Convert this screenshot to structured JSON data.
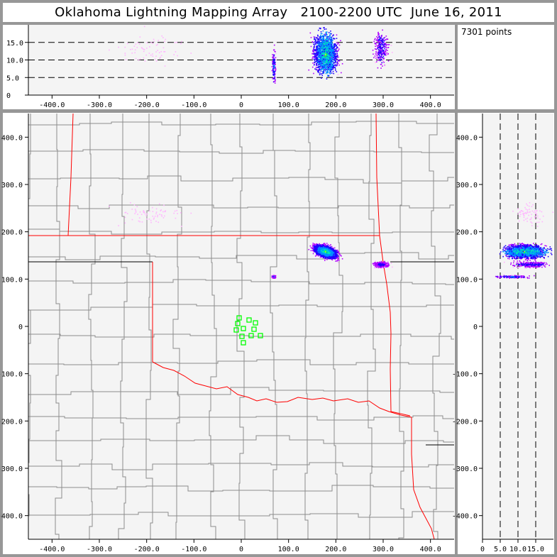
{
  "title": "Oklahoma Lightning Mapping Array   2100-2200 UTC  June 16, 2011",
  "point_count": "7301 points",
  "colors": {
    "frame": "#979797",
    "plot_bg": "#f4f4f4",
    "state_border": "#ff0000",
    "county_border": "#8c8c8c",
    "station": "#00ff00",
    "density_scale": [
      "#ffb4ff",
      "#b000ff",
      "#2000ff",
      "#0090ff",
      "#00e0c0",
      "#00ff40",
      "#ffff00"
    ]
  },
  "chart_data": [
    {
      "panel": "top",
      "type": "scatter",
      "xlabel": "",
      "ylabel": "",
      "xlim": [
        -450,
        450
      ],
      "ylim": [
        0,
        20
      ],
      "x_ticks": [
        "-400.0",
        "-300.0",
        "-200.0",
        "-100.0",
        "0",
        "100.0",
        "200.0",
        "300.0",
        "400.0"
      ],
      "x_tick_values": [
        -400,
        -300,
        -200,
        -100,
        0,
        100,
        200,
        300,
        400
      ],
      "y_ticks": [
        "0",
        "5.0",
        "10.0",
        "15.0"
      ],
      "y_tick_values": [
        0,
        5,
        10,
        15
      ],
      "dashed_gridlines": [
        5,
        10,
        15
      ]
    },
    {
      "panel": "plan",
      "type": "scatter",
      "xlabel": "",
      "ylabel": "",
      "xlim": [
        -450,
        450
      ],
      "ylim": [
        -450,
        450
      ],
      "x_ticks": [
        "-400.0",
        "-300.0",
        "-200.0",
        "-100.0",
        "0",
        "100.0",
        "200.0",
        "300.0",
        "400.0"
      ],
      "x_tick_values": [
        -400,
        -300,
        -200,
        -100,
        0,
        100,
        200,
        300,
        400
      ],
      "y_ticks": [
        "400.0",
        "300.0",
        "200.0",
        "100.0",
        "0",
        "-100.0",
        "-200.0",
        "-300.0",
        "-400.0"
      ],
      "y_tick_values": [
        400,
        300,
        200,
        100,
        0,
        -100,
        -200,
        -300,
        -400
      ],
      "stations": [
        [
          -4.5,
          18
        ],
        [
          -7.5,
          6
        ],
        [
          -10.5,
          -7.5
        ],
        [
          4.5,
          -4.5
        ],
        [
          16.5,
          13.5
        ],
        [
          30,
          7.5
        ],
        [
          27,
          -6
        ],
        [
          1.5,
          -21
        ],
        [
          21,
          -19.5
        ],
        [
          40.5,
          -19.5
        ],
        [
          4.5,
          -34.5
        ]
      ]
    },
    {
      "panel": "right",
      "type": "scatter",
      "xlabel": "",
      "ylabel": "",
      "xlim": [
        0,
        20
      ],
      "ylim": [
        -450,
        450
      ],
      "x_ticks": [
        "0",
        "5.0",
        "10.0",
        "15.0"
      ],
      "x_tick_values": [
        0,
        5,
        10,
        15
      ],
      "y_ticks": [
        "400.0",
        "300.0",
        "200.0",
        "100.0",
        "0",
        "-100.0",
        "-200.0",
        "-300.0",
        "-400.0"
      ],
      "y_tick_values": [
        400,
        300,
        200,
        100,
        0,
        -100,
        -200,
        -300,
        -400
      ],
      "dashed_gridlines": [
        5,
        10,
        15
      ]
    }
  ],
  "source_clusters": [
    {
      "x": [
        140,
        215
      ],
      "y": [
        140,
        178
      ],
      "alt": [
        4,
        20
      ],
      "density": "high"
    },
    {
      "x": [
        62,
        74
      ],
      "y": [
        102,
        110
      ],
      "alt": [
        2,
        15
      ],
      "density": "medium"
    },
    {
      "x": [
        270,
        320
      ],
      "y": [
        122,
        142
      ],
      "alt": [
        7,
        20
      ],
      "density": "low"
    },
    {
      "x": [
        -290,
        -90
      ],
      "y": [
        200,
        280
      ],
      "alt": [
        4,
        20
      ],
      "density": "sparse"
    }
  ]
}
